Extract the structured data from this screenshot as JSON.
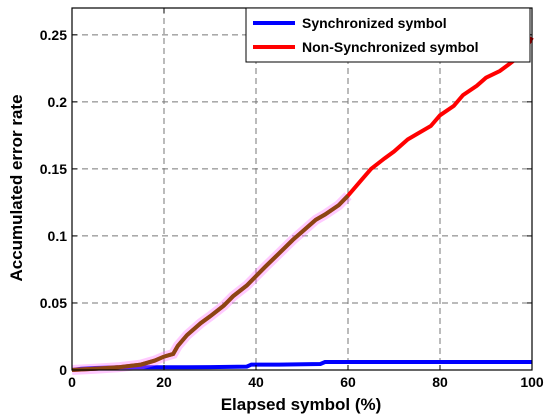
{
  "chart_data": {
    "type": "line",
    "title": "",
    "xlabel": "Elapsed symbol (%)",
    "ylabel": "Accumulated error rate",
    "xlim": [
      0,
      100
    ],
    "ylim": [
      0,
      0.27
    ],
    "xticks": [
      0,
      20,
      40,
      60,
      80,
      100
    ],
    "yticks": [
      0,
      0.05,
      0.1,
      0.15,
      0.2,
      0.25
    ],
    "ytick_labels": [
      "0",
      "0.05",
      "0.1",
      "0.15",
      "0.2",
      "0.25"
    ],
    "grid": true,
    "legend_position": "top-right",
    "series": [
      {
        "name": "Synchronized symbol",
        "color": "#0000ff",
        "x": [
          0,
          2,
          5,
          10,
          15,
          20,
          25,
          30,
          38,
          39,
          45,
          54,
          55,
          60,
          70,
          80,
          90,
          100
        ],
        "y": [
          0,
          0.001,
          0.0015,
          0.002,
          0.002,
          0.002,
          0.002,
          0.0022,
          0.0025,
          0.004,
          0.004,
          0.0045,
          0.006,
          0.006,
          0.006,
          0.006,
          0.006,
          0.006
        ]
      },
      {
        "name": "Non-Synchronized symbol",
        "color": "#ff0000",
        "x": [
          0,
          5,
          10,
          15,
          18,
          20,
          22,
          23,
          25,
          28,
          30,
          33,
          35,
          38,
          40,
          42,
          45,
          48,
          50,
          53,
          55,
          58,
          60,
          63,
          65,
          68,
          70,
          73,
          75,
          78,
          80,
          83,
          85,
          88,
          90,
          93,
          95,
          98,
          100
        ],
        "y": [
          0,
          0.001,
          0.002,
          0.004,
          0.007,
          0.01,
          0.012,
          0.018,
          0.026,
          0.035,
          0.04,
          0.048,
          0.055,
          0.063,
          0.07,
          0.077,
          0.087,
          0.097,
          0.103,
          0.112,
          0.116,
          0.123,
          0.13,
          0.142,
          0.15,
          0.158,
          0.163,
          0.172,
          0.176,
          0.182,
          0.19,
          0.197,
          0.205,
          0.212,
          0.218,
          0.223,
          0.228,
          0.236,
          0.248
        ]
      }
    ],
    "overlay_series": {
      "color": "#8b4513",
      "halo_color": "#ff66ff",
      "x_range": [
        0,
        60
      ]
    }
  }
}
